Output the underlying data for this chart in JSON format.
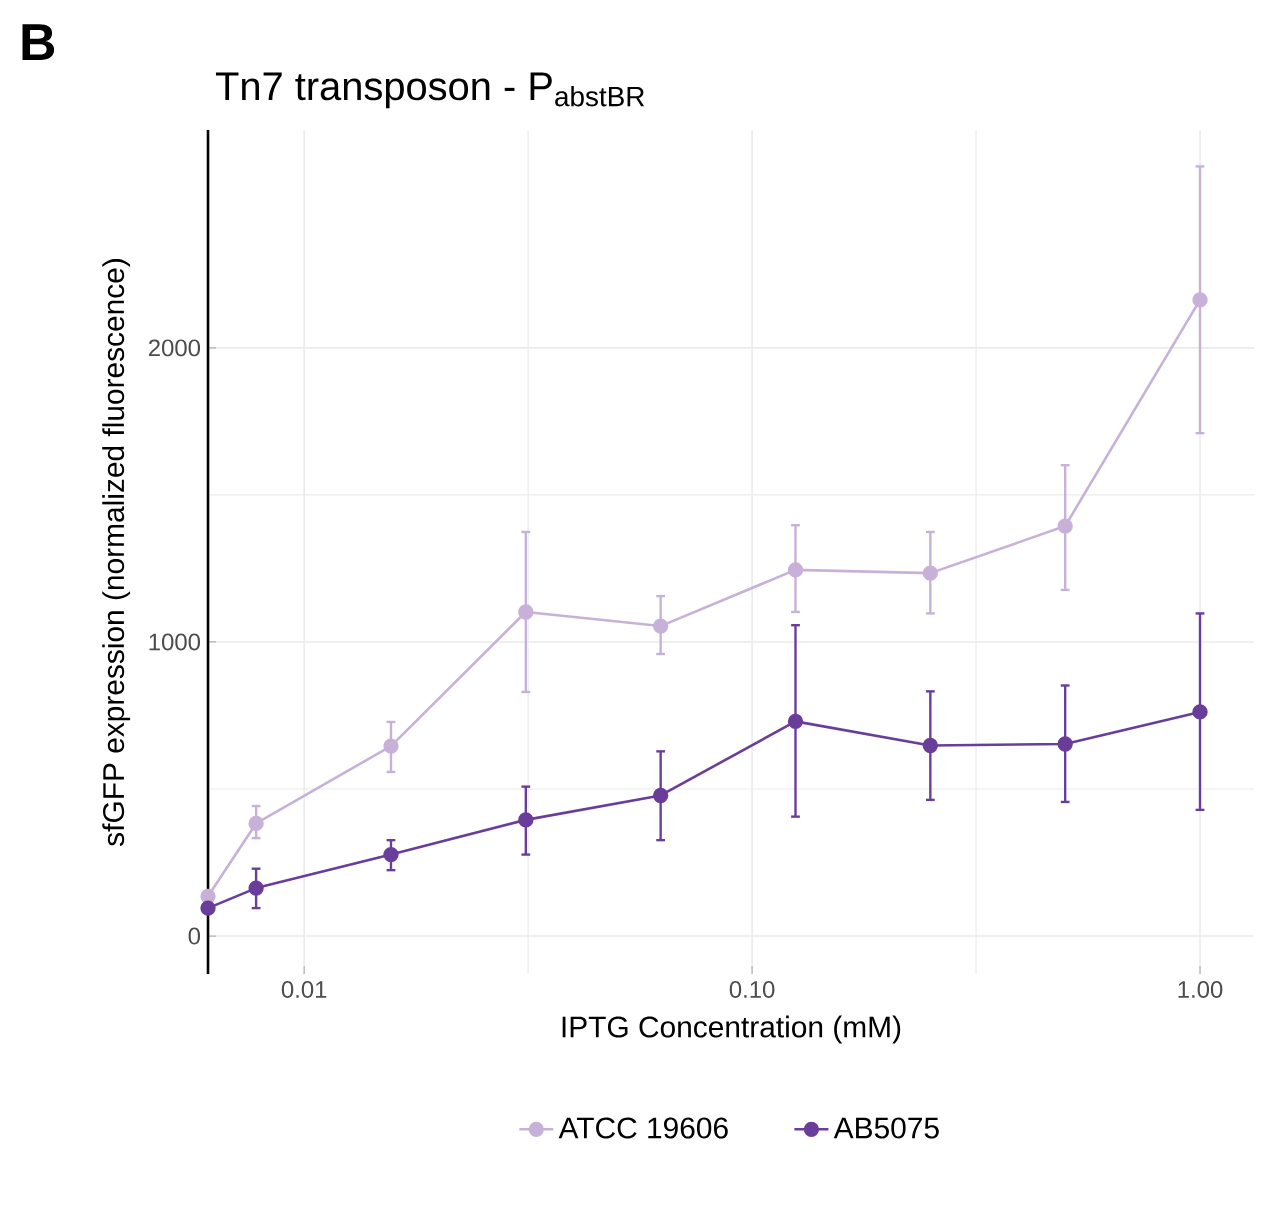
{
  "chart_data": {
    "type": "line",
    "title": "Tn7 transposon - P$_{abstBR}$",
    "xlabel": "IPTG Concentration (mM)",
    "ylabel": "sfGFP expression (normalized fluorescence)",
    "annotations": [
      "B"
    ],
    "x": [
      0.0061,
      0.0078125,
      0.015625,
      0.03125,
      0.0625,
      0.125,
      0.25,
      0.5,
      1
    ],
    "log": "x",
    "xlim": [
      0.0061,
      1.32
    ],
    "ylim": [
      -129,
      2741
    ],
    "xticks": [
      0.01,
      {
        "value": 0.1,
        "label": "0.10"
      },
      {
        "value": 1,
        "label": "1.00"
      }
    ],
    "yticks": [
      0,
      1000,
      2000
    ],
    "grid": true,
    "legend": "bottom",
    "marker": "circle",
    "line_style": "solid",
    "series": [
      {
        "name": "ATCC 19606",
        "color": "#c8b1d8",
        "values": [
          135,
          383,
          646,
          1102,
          1054,
          1245,
          1234,
          1394,
          2163
        ],
        "errors": [
          null,
          [
            333,
            442
          ],
          [
            558,
            728
          ],
          [
            830,
            1374
          ],
          [
            959,
            1156
          ],
          [
            1102,
            1397
          ],
          [
            1097,
            1374
          ],
          [
            1177,
            1601
          ],
          [
            1710,
            2617
          ]
        ]
      },
      {
        "name": "AB5075",
        "color": "#6a3d9a",
        "values": [
          95,
          163,
          277,
          395,
          478,
          730,
          648,
          653,
          762
        ],
        "errors": [
          null,
          [
            95,
            229
          ],
          [
            224,
            326
          ],
          [
            277,
            508
          ],
          [
            326,
            628
          ],
          [
            406,
            1057
          ],
          [
            463,
            832
          ],
          [
            456,
            852
          ],
          [
            429,
            1097
          ]
        ]
      }
    ]
  }
}
